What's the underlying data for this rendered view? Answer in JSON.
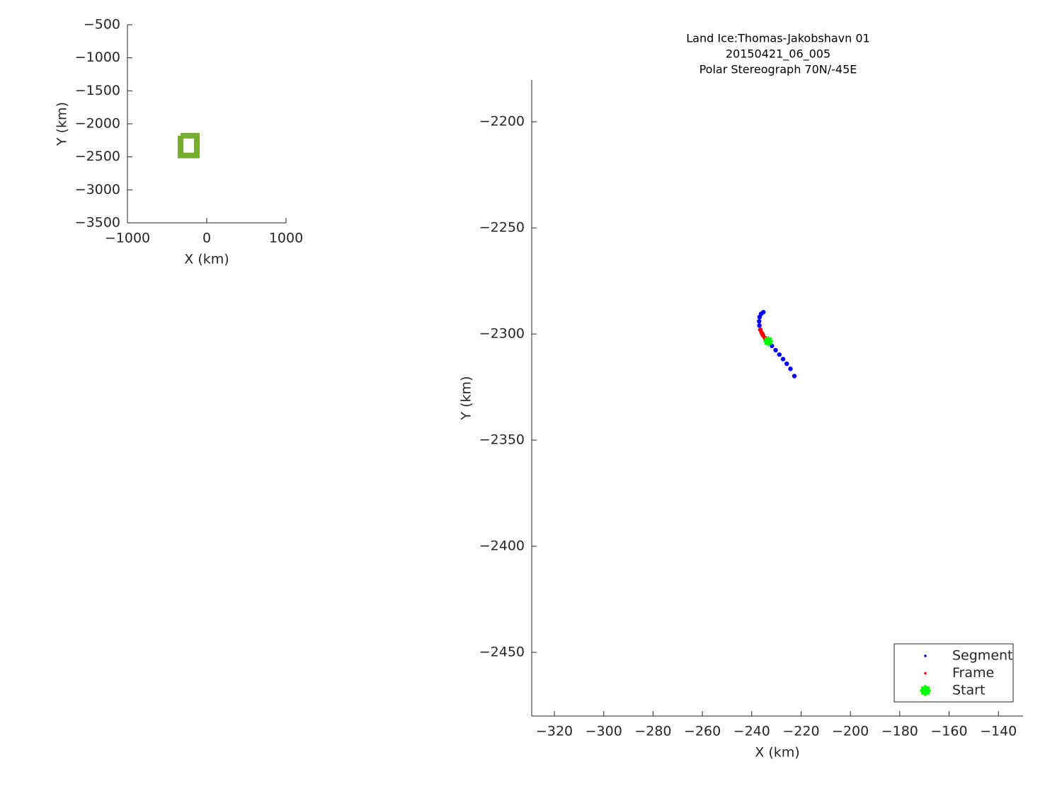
{
  "chart_data": [
    {
      "type": "line",
      "xlabel": "X (km)",
      "ylabel": "Y (km)",
      "color": "#77ac30",
      "x": [
        -330,
        -125,
        -125,
        -330,
        -330
      ],
      "y": [
        -2180,
        -2180,
        -2480,
        -2480,
        -2180
      ],
      "xlim": [
        -1000,
        1000
      ],
      "ylim": [
        -3500,
        -500
      ],
      "xticks": [
        {
          "value": -1000,
          "label": "−1000"
        },
        0,
        1000
      ],
      "yticks": [
        {
          "value": -500,
          "label": "−500"
        },
        {
          "value": -1000,
          "label": "−1000"
        },
        {
          "value": -1500,
          "label": "−1500"
        },
        {
          "value": -2000,
          "label": "−2000"
        },
        {
          "value": -2500,
          "label": "−2500"
        },
        {
          "value": -3000,
          "label": "−3000"
        },
        {
          "value": -3500,
          "label": "−3500"
        }
      ],
      "grid": false
    },
    {
      "type": "scatter",
      "title": [
        "Land Ice:Thomas-Jakobshavn 01",
        "20150421_06_005",
        "Polar Stereograph 70N/-45E"
      ],
      "xlabel": "X (km)",
      "ylabel": "Y (km)",
      "xlim": [
        -329.2,
        -130
      ],
      "ylim": [
        -2480,
        -2180.3
      ],
      "xticks": [
        {
          "value": -320,
          "label": "−320"
        },
        {
          "value": -300,
          "label": "−300"
        },
        {
          "value": -280,
          "label": "−280"
        },
        {
          "value": -260,
          "label": "−260"
        },
        {
          "value": -240,
          "label": "−240"
        },
        {
          "value": -220,
          "label": "−220"
        },
        {
          "value": -200,
          "label": "−200"
        },
        {
          "value": -180,
          "label": "−180"
        },
        {
          "value": -160,
          "label": "−160"
        },
        {
          "value": -140,
          "label": "−140"
        }
      ],
      "yticks": [
        {
          "value": -2200,
          "label": "−2200"
        },
        {
          "value": -2250,
          "label": "−2250"
        },
        {
          "value": -2300,
          "label": "−2300"
        },
        {
          "value": -2350,
          "label": "−2350"
        },
        {
          "value": -2400,
          "label": "−2400"
        },
        {
          "value": -2450,
          "label": "−2450"
        }
      ],
      "grid": false,
      "legend": "southeast",
      "series": [
        {
          "name": "Segment",
          "color": "#0000ff",
          "marker": ".",
          "x": [
            -235.3,
            -236.2,
            -236.8,
            -237.0,
            -236.9,
            -236.5,
            -235.7,
            -234.6,
            -233.3,
            -231.8,
            -230.3,
            -228.8,
            -227.3,
            -225.8,
            -224.3,
            -222.7
          ],
          "y": [
            -2289.7,
            -2290.5,
            -2292,
            -2294,
            -2296,
            -2298,
            -2300,
            -2302,
            -2303.6,
            -2305.6,
            -2307.6,
            -2309.7,
            -2311.8,
            -2314,
            -2316.4,
            -2319.8
          ]
        },
        {
          "name": "Frame",
          "color": "#ff0000",
          "marker": ".",
          "x": [
            -236.5,
            -236.0,
            -235.4,
            -234.6,
            -233.8
          ],
          "y": [
            -2298,
            -2299.4,
            -2300.7,
            -2302,
            -2303
          ]
        },
        {
          "name": "Start",
          "color": "#00ff00",
          "marker": "x",
          "x": [
            -233.3
          ],
          "y": [
            -2303.4
          ]
        }
      ]
    }
  ]
}
